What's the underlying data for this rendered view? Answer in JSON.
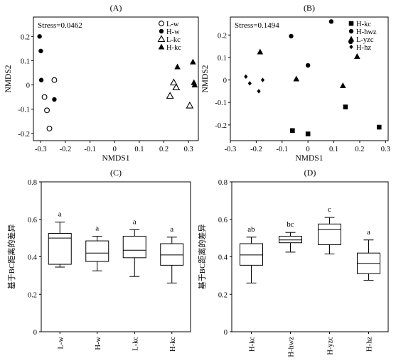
{
  "chart_data": [
    {
      "panel": "(A)",
      "type": "scatter",
      "annotation": "Stress=0.0462",
      "xlabel": "NMDS1",
      "ylabel": "NMDS2",
      "xlim": [
        -0.33,
        0.34
      ],
      "ylim": [
        -0.23,
        0.28
      ],
      "xticks": [
        -0.3,
        -0.2,
        -0.1,
        0,
        0.1,
        0.2,
        0.3
      ],
      "xtick_labels": [
        "-0.3",
        "-0.2",
        "-0.1",
        "0",
        "0.1",
        "0.2",
        "0.3"
      ],
      "yticks": [
        -0.2,
        -0.1,
        0,
        0.1,
        0.2
      ],
      "ytick_labels": [
        "-0.2",
        "-0.1",
        "0",
        "0.1",
        "0.2"
      ],
      "legend_position": "top-right",
      "series": [
        {
          "name": "L-w",
          "marker": "circle-open",
          "points": [
            [
              -0.285,
              -0.05
            ],
            [
              -0.275,
              -0.105
            ],
            [
              -0.265,
              -0.18
            ],
            [
              -0.245,
              0.02
            ]
          ]
        },
        {
          "name": "H-w",
          "marker": "circle-filled",
          "points": [
            [
              -0.305,
              0.2
            ],
            [
              -0.3,
              0.14
            ],
            [
              -0.298,
              0.02
            ],
            [
              -0.245,
              -0.06
            ]
          ]
        },
        {
          "name": "L-kc",
          "marker": "triangle-open",
          "points": [
            [
              0.225,
              -0.045
            ],
            [
              0.24,
              0.01
            ],
            [
              0.25,
              -0.01
            ],
            [
              0.305,
              -0.085
            ]
          ]
        },
        {
          "name": "H-kc",
          "marker": "triangle-filled",
          "points": [
            [
              0.255,
              0.075
            ],
            [
              0.318,
              0.095
            ],
            [
              0.322,
              0.01
            ],
            [
              0.325,
              0.0
            ]
          ]
        }
      ]
    },
    {
      "panel": "(B)",
      "type": "scatter",
      "annotation": "Stress=0.1494",
      "xlabel": "NMDS1",
      "ylabel": "NMDS2",
      "xlim": [
        -0.3,
        0.31
      ],
      "ylim": [
        -0.27,
        0.28
      ],
      "xticks": [
        -0.3,
        -0.2,
        -0.1,
        0,
        0.1,
        0.2,
        0.3
      ],
      "xtick_labels": [
        "-0.3",
        "-0.2",
        "-0.1",
        "0",
        "0.1",
        "0.2",
        "0.3"
      ],
      "yticks": [
        -0.2,
        -0.1,
        0,
        0.1,
        0.2
      ],
      "ytick_labels": [
        "-0.2",
        "-0.1",
        "0",
        "0.1",
        "0.2"
      ],
      "legend_position": "top-right",
      "series": [
        {
          "name": "H-kc",
          "marker": "square",
          "points": [
            [
              -0.06,
              -0.225
            ],
            [
              0.0,
              -0.24
            ],
            [
              0.145,
              -0.12
            ],
            [
              0.275,
              -0.21
            ]
          ]
        },
        {
          "name": "H-hwz",
          "marker": "circle-filled",
          "points": [
            [
              -0.065,
              0.195
            ],
            [
              0.0,
              0.065
            ],
            [
              0.09,
              0.26
            ],
            [
              0.165,
              0.17
            ]
          ]
        },
        {
          "name": "L-yzc",
          "marker": "triangle-filled",
          "points": [
            [
              -0.185,
              0.125
            ],
            [
              -0.045,
              0.005
            ],
            [
              0.135,
              -0.025
            ],
            [
              0.19,
              0.105
            ]
          ]
        },
        {
          "name": "H-hz",
          "marker": "diamond",
          "points": [
            [
              -0.24,
              0.015
            ],
            [
              -0.225,
              -0.015
            ],
            [
              -0.19,
              -0.05
            ],
            [
              -0.175,
              0.0
            ]
          ]
        }
      ]
    },
    {
      "panel": "(C)",
      "type": "box",
      "ylabel": "基于BC距离的差异",
      "ylim": [
        0,
        0.8
      ],
      "yticks": [
        0,
        0.2,
        0.4,
        0.6,
        0.8
      ],
      "ytick_labels": [
        "0",
        "0.2",
        "0.4",
        "0.6",
        "0.8"
      ],
      "categories": [
        "L-w",
        "H-w",
        "L-kc",
        "H-kc"
      ],
      "boxes": [
        {
          "min": 0.345,
          "q1": 0.36,
          "median": 0.5,
          "q3": 0.525,
          "max": 0.585,
          "letter": "a"
        },
        {
          "min": 0.325,
          "q1": 0.375,
          "median": 0.42,
          "q3": 0.485,
          "max": 0.51,
          "letter": "a"
        },
        {
          "min": 0.295,
          "q1": 0.395,
          "median": 0.435,
          "q3": 0.51,
          "max": 0.545,
          "letter": "a"
        },
        {
          "min": 0.26,
          "q1": 0.355,
          "median": 0.41,
          "q3": 0.47,
          "max": 0.505,
          "letter": "a"
        }
      ]
    },
    {
      "panel": "(D)",
      "type": "box",
      "ylabel": "基于BC距离的差异",
      "ylim": [
        0,
        0.8
      ],
      "yticks": [
        0,
        0.2,
        0.4,
        0.6,
        0.8
      ],
      "ytick_labels": [
        "0",
        "0.2",
        "0.4",
        "0.6",
        "0.8"
      ],
      "categories": [
        "H-kc",
        "H-hwz",
        "H-yzc",
        "H-hz"
      ],
      "boxes": [
        {
          "min": 0.26,
          "q1": 0.355,
          "median": 0.41,
          "q3": 0.47,
          "max": 0.505,
          "letter": "ab"
        },
        {
          "min": 0.425,
          "q1": 0.475,
          "median": 0.49,
          "q3": 0.51,
          "max": 0.53,
          "letter": "bc"
        },
        {
          "min": 0.415,
          "q1": 0.465,
          "median": 0.545,
          "q3": 0.575,
          "max": 0.61,
          "letter": "c"
        },
        {
          "min": 0.275,
          "q1": 0.31,
          "median": 0.365,
          "q3": 0.42,
          "max": 0.49,
          "letter": "a"
        }
      ]
    }
  ]
}
